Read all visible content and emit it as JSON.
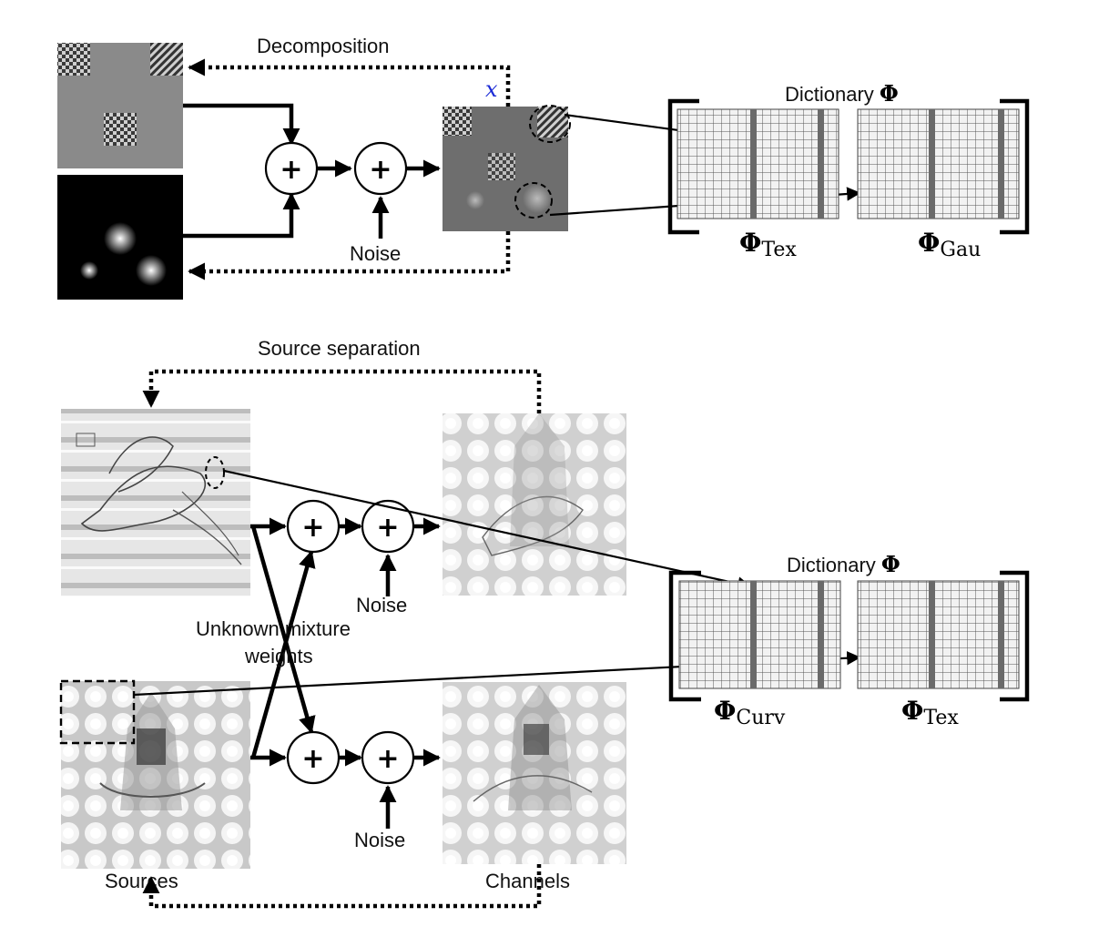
{
  "top": {
    "caption": "Decomposition",
    "signal_symbol": "x",
    "noise_label": "Noise",
    "dictionary_title": "Dictionary",
    "dictionary_symbol": "Φ",
    "sub_dictionaries": [
      {
        "symbol": "Φ",
        "subscript": "Tex"
      },
      {
        "symbol": "Φ",
        "subscript": "Gau"
      }
    ]
  },
  "bottom": {
    "caption": "Source separation",
    "noise_label_1": "Noise",
    "noise_label_2": "Noise",
    "mixture_label_line1": "Unknown mixture",
    "mixture_label_line2": "weights",
    "sources_label": "Sources",
    "channels_label": "Channels",
    "dictionary_title": "Dictionary",
    "dictionary_symbol": "Φ",
    "sub_dictionaries": [
      {
        "symbol": "Φ",
        "subscript": "Curv"
      },
      {
        "symbol": "Φ",
        "subscript": "Tex"
      }
    ]
  },
  "operators": {
    "plus": "+"
  }
}
